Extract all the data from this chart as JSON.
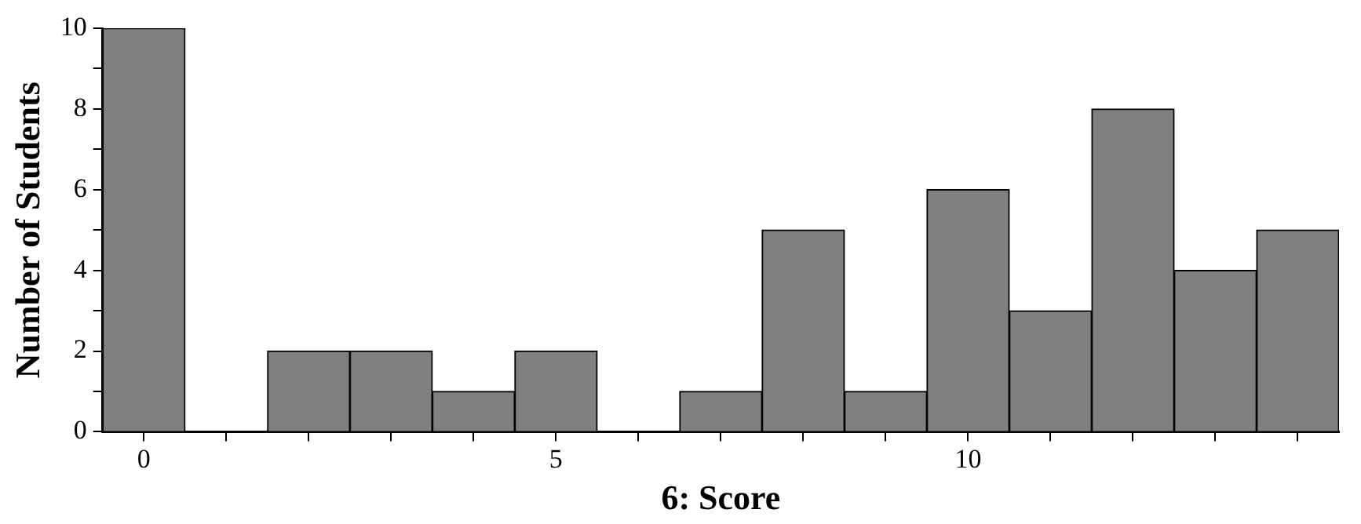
{
  "chart_data": {
    "type": "histogram",
    "xlabel": "6: Score",
    "ylabel": "Number of Students",
    "bins": [
      -0.5,
      0.5,
      1.5,
      2.5,
      3.5,
      4.5,
      5.5,
      6.5,
      7.5,
      8.5,
      9.5,
      10.5,
      11.5,
      12.5,
      13.5,
      14.5
    ],
    "values": [
      10,
      0,
      2,
      2,
      1,
      2,
      0,
      1,
      5,
      1,
      6,
      3,
      8,
      4,
      5
    ],
    "color": "#808080",
    "xlim": [
      -0.5,
      14.5
    ],
    "xticks": [
      0,
      {
        "value": 1,
        "label": null
      },
      {
        "value": 2,
        "label": null
      },
      {
        "value": 3,
        "label": null
      },
      {
        "value": 4,
        "label": null
      },
      5,
      {
        "value": 6,
        "label": null
      },
      {
        "value": 7,
        "label": null
      },
      {
        "value": 8,
        "label": null
      },
      {
        "value": 9,
        "label": null
      },
      10,
      {
        "value": 11,
        "label": null
      },
      {
        "value": 12,
        "label": null
      },
      {
        "value": 13,
        "label": null
      },
      {
        "value": 14,
        "label": null
      }
    ],
    "ylim": [
      0,
      10
    ],
    "yticks": [
      0,
      {
        "value": 1,
        "label": null
      },
      2,
      {
        "value": 3,
        "label": null
      },
      4,
      {
        "value": 5,
        "label": null
      },
      6,
      {
        "value": 7,
        "label": null
      },
      8,
      {
        "value": 9,
        "label": null
      },
      10
    ],
    "grid": false,
    "legend": false
  }
}
